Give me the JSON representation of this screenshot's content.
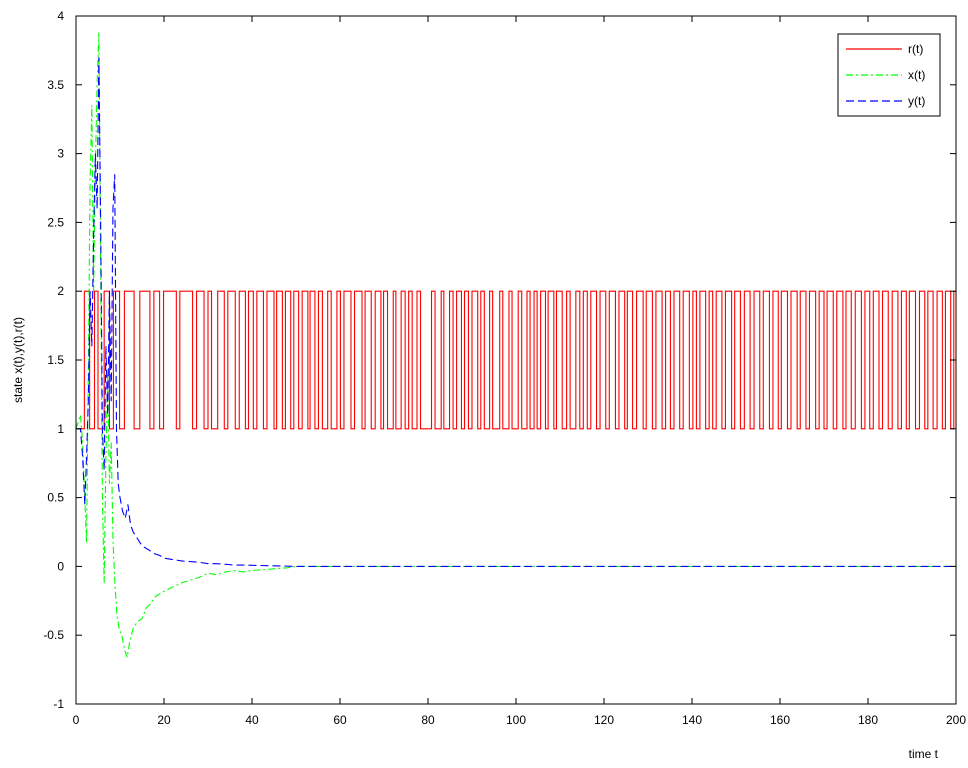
{
  "chart_data": {
    "type": "line",
    "title": "",
    "xlabel": "time t",
    "ylabel": "state x(t),y(t),r(t)",
    "xlim": [
      0,
      200
    ],
    "ylim": [
      -1,
      4
    ],
    "xticks": [
      0,
      20,
      40,
      60,
      80,
      100,
      120,
      140,
      160,
      180,
      200
    ],
    "yticks": [
      -1,
      -0.5,
      0,
      0.5,
      1,
      1.5,
      2,
      2.5,
      3,
      3.5,
      4
    ],
    "grid": false,
    "legend_position": "top-right",
    "series": [
      {
        "name": "r(t)",
        "color": "#ff0000",
        "dash": "solid",
        "kind": "step",
        "switch_times": [
          1.9,
          3.1,
          4.2,
          5.0,
          6.4,
          7.6,
          8.5,
          9.9,
          11,
          13.2,
          14.5,
          16.8,
          17.7,
          19.0,
          19.9,
          22.8,
          23.6,
          26.5,
          27.4,
          29.1,
          30.0,
          30.8,
          32.2,
          33.7,
          34.5,
          36.2,
          37.1,
          38.5,
          39.2,
          40.3,
          41.1,
          42.6,
          43.4,
          45.0,
          45.6,
          46.9,
          47.6,
          48.8,
          49.5,
          50.6,
          51.4,
          52.7,
          53.2,
          54.3,
          55.1,
          56.0,
          57.2,
          58.0,
          59.3,
          60.1,
          60.9,
          62.5,
          63.3,
          65.0,
          65.7,
          67.1,
          68.0,
          69.3,
          69.9,
          70.8,
          72.1,
          72.7,
          73.9,
          74.8,
          75.6,
          76.4,
          77.5,
          78.3,
          80.8,
          81.6,
          83.0,
          83.6,
          84.9,
          85.7,
          86.5,
          87.6,
          88.3,
          89.2,
          90.0,
          91.3,
          92.0,
          92.8,
          94.0,
          94.7,
          96.3,
          97.0,
          98.4,
          99.1,
          100.5,
          101.3,
          102.5,
          103.2,
          104.1,
          104.8,
          105.6,
          106.7,
          107.3,
          108.6,
          109.2,
          110.5,
          111.5,
          112.3,
          113.6,
          114.5,
          115.3,
          116.2,
          117.0,
          118.3,
          119.1,
          120.4,
          121.2,
          122.6,
          123.4,
          124.7,
          125.3,
          126.5,
          127.4,
          128.9,
          129.6,
          131.0,
          131.8,
          133.2,
          134.0,
          135.1,
          135.9,
          137.2,
          138.0,
          139.4,
          140.2,
          141.0,
          141.8,
          143.1,
          143.9,
          144.7,
          145.5,
          146.8,
          147.6,
          149.0,
          149.7,
          151.0,
          151.9,
          153.2,
          154.1,
          155.4,
          156.2,
          157.6,
          158.4,
          159.6,
          160.3,
          161.7,
          162.5,
          163.9,
          164.6,
          165.9,
          166.7,
          168.1,
          168.9,
          170.0,
          170.7,
          172.1,
          172.9,
          174.3,
          175.0,
          176.2,
          177.1,
          178.5,
          179.3,
          180.4,
          181.2,
          182.5,
          183.3,
          184.6,
          185.5,
          186.8,
          187.6,
          188.7,
          189.4,
          190.8,
          191.7,
          192.9,
          193.6,
          194.8,
          195.7,
          196.9,
          197.6,
          198.8,
          199.5
        ],
        "start_value": 1,
        "values": [
          1,
          2
        ]
      },
      {
        "name": "x(t)",
        "color": "#00ff00",
        "dash": "dash-dot",
        "points": [
          [
            0,
            1
          ],
          [
            1,
            1.1
          ],
          [
            1.5,
            0.9
          ],
          [
            2,
            0.5
          ],
          [
            2.4,
            0.17
          ],
          [
            2.8,
            1.4
          ],
          [
            3.2,
            2.8
          ],
          [
            3.6,
            3.35
          ],
          [
            4,
            2.0
          ],
          [
            4.4,
            2.9
          ],
          [
            4.8,
            3.5
          ],
          [
            5.2,
            3.88
          ],
          [
            5.6,
            2.2
          ],
          [
            6,
            0.5
          ],
          [
            6.4,
            -0.12
          ],
          [
            6.8,
            0.8
          ],
          [
            7.2,
            1.4
          ],
          [
            7.6,
            0.6
          ],
          [
            8,
            0.9
          ],
          [
            8.4,
            0.2
          ],
          [
            8.8,
            -0.1
          ],
          [
            9.3,
            -0.35
          ],
          [
            9.8,
            -0.45
          ],
          [
            10.4,
            -0.5
          ],
          [
            11,
            -0.6
          ],
          [
            11.6,
            -0.66
          ],
          [
            12.2,
            -0.55
          ],
          [
            13,
            -0.45
          ],
          [
            14,
            -0.4
          ],
          [
            15,
            -0.38
          ],
          [
            16,
            -0.3
          ],
          [
            17,
            -0.27
          ],
          [
            18,
            -0.22
          ],
          [
            19,
            -0.2
          ],
          [
            20,
            -0.18
          ],
          [
            22,
            -0.15
          ],
          [
            24,
            -0.12
          ],
          [
            26,
            -0.1
          ],
          [
            28,
            -0.08
          ],
          [
            30,
            -0.05
          ],
          [
            32,
            -0.06
          ],
          [
            34,
            -0.04
          ],
          [
            36,
            -0.03
          ],
          [
            38,
            -0.04
          ],
          [
            40,
            -0.03
          ],
          [
            42,
            -0.025
          ],
          [
            44,
            -0.02
          ],
          [
            46,
            -0.015
          ],
          [
            48,
            -0.01
          ],
          [
            50,
            0
          ],
          [
            60,
            0
          ],
          [
            80,
            0
          ],
          [
            100,
            0
          ],
          [
            120,
            0
          ],
          [
            140,
            0
          ],
          [
            160,
            0
          ],
          [
            180,
            0
          ],
          [
            200,
            0
          ]
        ]
      },
      {
        "name": "y(t)",
        "color": "#0000ff",
        "dash": "dashed",
        "points": [
          [
            0,
            1
          ],
          [
            1,
            1.0
          ],
          [
            1.5,
            0.8
          ],
          [
            2,
            0.45
          ],
          [
            2.4,
            0.8
          ],
          [
            2.8,
            1.2
          ],
          [
            3.2,
            2.0
          ],
          [
            3.6,
            1.6
          ],
          [
            4,
            2.4
          ],
          [
            4.4,
            3.0
          ],
          [
            4.8,
            2.6
          ],
          [
            5.2,
            3.7
          ],
          [
            5.6,
            2.5
          ],
          [
            6,
            1.0
          ],
          [
            6.4,
            0.7
          ],
          [
            6.8,
            1.6
          ],
          [
            7.2,
            1.1
          ],
          [
            7.6,
            2.0
          ],
          [
            8,
            1.2
          ],
          [
            8.4,
            2.6
          ],
          [
            8.8,
            2.85
          ],
          [
            9.2,
            1.0
          ],
          [
            9.6,
            0.6
          ],
          [
            10,
            0.5
          ],
          [
            10.6,
            0.4
          ],
          [
            11.2,
            0.35
          ],
          [
            11.8,
            0.45
          ],
          [
            12.4,
            0.3
          ],
          [
            13,
            0.25
          ],
          [
            14,
            0.2
          ],
          [
            15,
            0.15
          ],
          [
            16,
            0.13
          ],
          [
            17,
            0.11
          ],
          [
            18,
            0.09
          ],
          [
            19,
            0.08
          ],
          [
            20,
            0.06
          ],
          [
            22,
            0.05
          ],
          [
            24,
            0.04
          ],
          [
            26,
            0.035
          ],
          [
            28,
            0.03
          ],
          [
            30,
            0.02
          ],
          [
            32,
            0.02
          ],
          [
            34,
            0.015
          ],
          [
            36,
            0.01
          ],
          [
            38,
            0.01
          ],
          [
            40,
            0.008
          ],
          [
            44,
            0.005
          ],
          [
            48,
            0.002
          ],
          [
            50,
            0
          ],
          [
            60,
            0
          ],
          [
            80,
            0
          ],
          [
            100,
            0
          ],
          [
            120,
            0
          ],
          [
            140,
            0
          ],
          [
            160,
            0
          ],
          [
            180,
            0
          ],
          [
            200,
            0
          ]
        ]
      }
    ]
  }
}
